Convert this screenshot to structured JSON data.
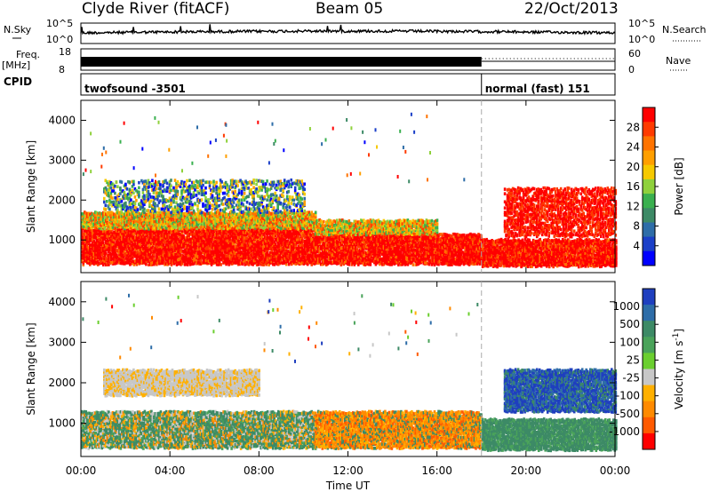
{
  "header": {
    "site": "Clyde River (fitACF)",
    "beam": "Beam 05",
    "date": "22/Oct/2013"
  },
  "summary_panels": {
    "nsky_label": "N.Sky",
    "nsearch_label": "N.Search",
    "freq_label": "Freq.",
    "freq_unit": "[MHz]",
    "nave_label": "Nave",
    "cpid_label": "CPID",
    "nsky_ticks": [
      "10^5",
      "10^0"
    ],
    "nsearch_ticks": [
      "10^5",
      "10^0"
    ],
    "freq_ticks": [
      "18",
      "8"
    ],
    "nave_ticks": [
      "60",
      "0"
    ],
    "cpid_segments": [
      {
        "label": "twofsound -3501",
        "start_hour": 0,
        "end_hour": 18
      },
      {
        "label": "normal (fast) 151",
        "start_hour": 18,
        "end_hour": 24
      }
    ]
  },
  "chart_data": [
    {
      "type": "heatmap",
      "name": "power-panel",
      "ylabel": "Slant Range [km]",
      "yticks": [
        1000,
        2000,
        3000,
        4000
      ],
      "ylim": [
        180,
        4500
      ],
      "xlim": [
        0,
        24
      ],
      "colorbar": {
        "label": "Power [dB]",
        "ticks": [
          "28",
          "24",
          "20",
          "16",
          "12",
          "8",
          "4"
        ],
        "colors": [
          "#ff0000",
          "#ff3a00",
          "#ff7300",
          "#ff9f00",
          "#f6c900",
          "#8fd13c",
          "#3ab04f",
          "#3d8a66",
          "#2e6da8",
          "#1b3fc8",
          "#0000ff"
        ]
      },
      "bands": [
        {
          "t0": 0,
          "t1": 10.5,
          "r0": 400,
          "r1": 1300,
          "level": "high"
        },
        {
          "t0": 0,
          "t1": 10.5,
          "r0": 1300,
          "r1": 1700,
          "level": "mid"
        },
        {
          "t0": 1,
          "t1": 10,
          "r0": 1700,
          "r1": 2500,
          "level": "scatter"
        },
        {
          "t0": 10.5,
          "t1": 18,
          "r0": 400,
          "r1": 1150,
          "level": "high"
        },
        {
          "t0": 10.5,
          "t1": 16,
          "r0": 1150,
          "r1": 1500,
          "level": "mid"
        },
        {
          "t0": 18,
          "t1": 24,
          "r0": 350,
          "r1": 1000,
          "level": "high"
        },
        {
          "t0": 19,
          "t1": 24,
          "r0": 1100,
          "r1": 2300,
          "level": "high-patchy"
        }
      ]
    },
    {
      "type": "heatmap",
      "name": "velocity-panel",
      "ylabel": "Slant Range [km]",
      "xlabel": "Time UT",
      "xticks": [
        "00:00",
        "04:00",
        "08:00",
        "12:00",
        "16:00",
        "20:00",
        "00:00"
      ],
      "yticks": [
        1000,
        2000,
        3000,
        4000
      ],
      "ylim": [
        180,
        4500
      ],
      "xlim": [
        0,
        24
      ],
      "colorbar": {
        "label": "Velocity [m s^-1]",
        "ticks": [
          "1000",
          "500",
          "100",
          "25",
          "-25",
          "-100",
          "-500",
          "-1000"
        ],
        "colors": [
          "#1f3fbf",
          "#2e6da8",
          "#3d8a66",
          "#4aa35a",
          "#6bcf2f",
          "#c7c7c7",
          "#ffb000",
          "#ff8a00",
          "#ff5a00",
          "#ff0000"
        ]
      },
      "bands": [
        {
          "t0": 0,
          "t1": 10.5,
          "r0": 400,
          "r1": 1300,
          "level": "green-mixed"
        },
        {
          "t0": 1,
          "t1": 8,
          "r0": 1700,
          "r1": 2300,
          "level": "grey"
        },
        {
          "t0": 10.5,
          "t1": 18,
          "r0": 400,
          "r1": 1300,
          "level": "orange-mixed"
        },
        {
          "t0": 18,
          "t1": 24,
          "r0": 350,
          "r1": 1100,
          "level": "green"
        },
        {
          "t0": 19,
          "t1": 24,
          "r0": 1300,
          "r1": 2300,
          "level": "blue-green"
        }
      ]
    }
  ]
}
